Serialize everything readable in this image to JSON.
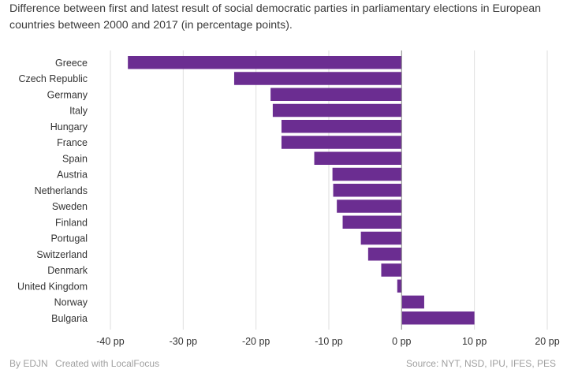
{
  "title": "Difference between first and latest result of social democratic parties in parliamentary elections in European countries between 2000 and 2017 (in percentage points).",
  "footer": {
    "byline": "By EDJN",
    "created": "Created with LocalFocus",
    "source": "Source: NYT, NSD, IPU, IFES, PES"
  },
  "colors": {
    "bar": "#6b2d91",
    "grid": "#dedede"
  },
  "chart_data": {
    "type": "bar",
    "orientation": "horizontal",
    "categories": [
      "Greece",
      "Czech Republic",
      "Germany",
      "Italy",
      "Hungary",
      "France",
      "Spain",
      "Austria",
      "Netherlands",
      "Sweden",
      "Finland",
      "Portugal",
      "Switzerland",
      "Denmark",
      "United Kingdom",
      "Norway",
      "Bulgaria"
    ],
    "values": [
      -37.6,
      -23.0,
      -18.0,
      -17.7,
      -16.5,
      -16.5,
      -12.0,
      -9.5,
      -9.4,
      -8.9,
      -8.1,
      -5.6,
      -4.6,
      -2.8,
      -0.6,
      3.1,
      10.0
    ],
    "xlim": [
      -40,
      20
    ],
    "xticks": [
      -40,
      -30,
      -20,
      -10,
      0,
      10,
      20
    ],
    "xtick_labels": [
      "-40 pp",
      "-30 pp",
      "-20 pp",
      "-10 pp",
      "0 pp",
      "10 pp",
      "20 pp"
    ],
    "grid": true,
    "xlabel": "",
    "ylabel": ""
  }
}
